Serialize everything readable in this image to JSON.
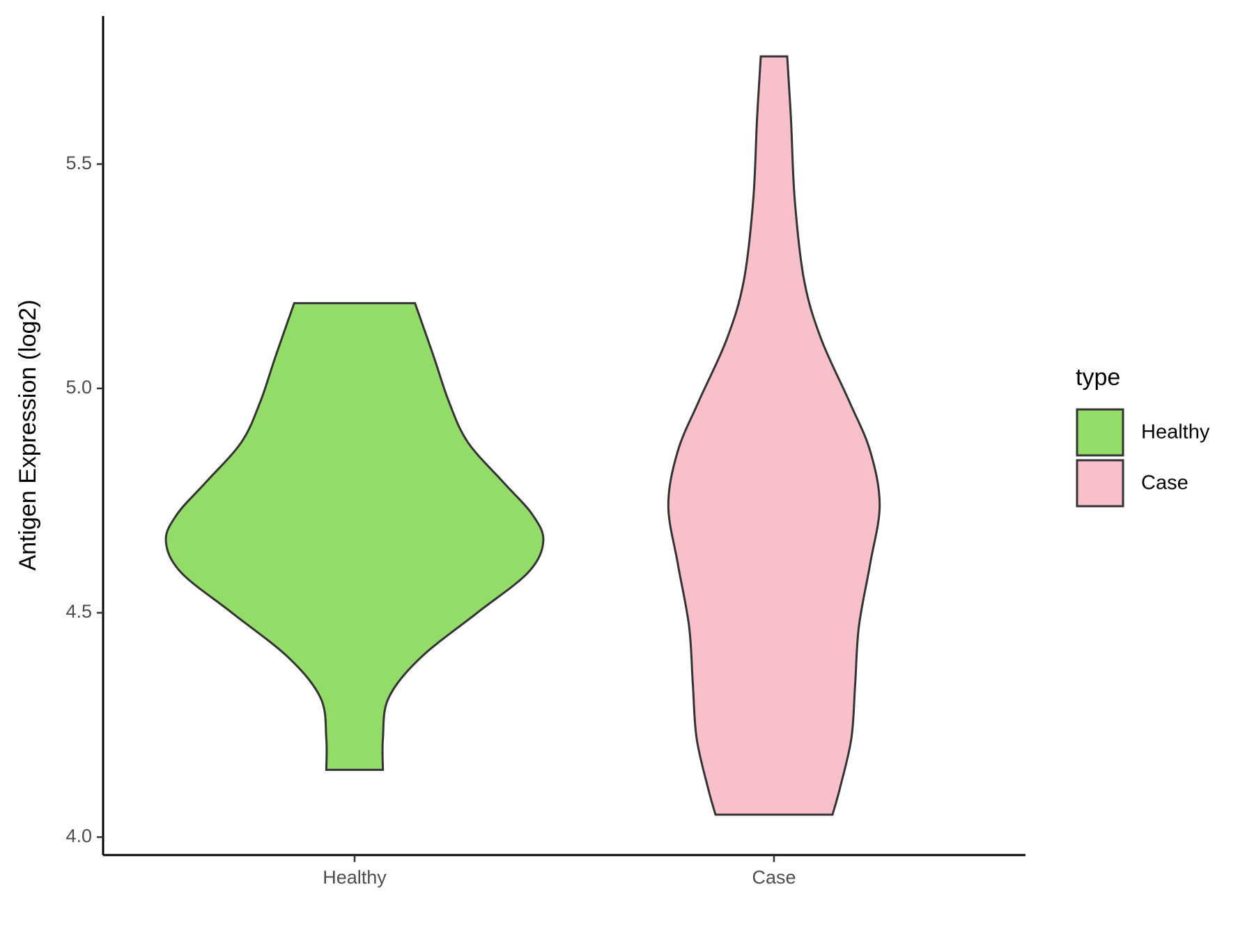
{
  "chart_data": {
    "type": "violin",
    "y_label": "Antigen Expression (log2)",
    "legend_title": "type",
    "legend": "right",
    "categories": [
      "Healthy",
      "Case"
    ],
    "series": [
      {
        "name": "Healthy",
        "color": "#93dc6a",
        "y": [
          5.19,
          5.07,
          4.97,
          4.88,
          4.79,
          4.72,
          4.66,
          4.59,
          4.5,
          4.4,
          4.31,
          4.22,
          4.15
        ],
        "density": [
          0.32,
          0.42,
          0.5,
          0.6,
          0.79,
          0.94,
          1.0,
          0.92,
          0.65,
          0.35,
          0.18,
          0.15,
          0.15
        ]
      },
      {
        "name": "Case",
        "color": "#f8c0cb",
        "y": [
          5.74,
          5.6,
          5.42,
          5.24,
          5.11,
          4.97,
          4.86,
          4.74,
          4.61,
          4.47,
          4.34,
          4.22,
          4.11,
          4.05
        ],
        "density": [
          0.07,
          0.09,
          0.11,
          0.16,
          0.25,
          0.4,
          0.51,
          0.56,
          0.51,
          0.45,
          0.43,
          0.41,
          0.35,
          0.31
        ]
      }
    ],
    "ylim": [
      3.96,
      5.83
    ],
    "yticks": [
      {
        "value": 4,
        "label": "4.0"
      },
      {
        "value": 4.5,
        "label": "4.5"
      },
      {
        "value": 5,
        "label": "5.0"
      },
      {
        "value": 5.5,
        "label": "5.5"
      }
    ]
  }
}
